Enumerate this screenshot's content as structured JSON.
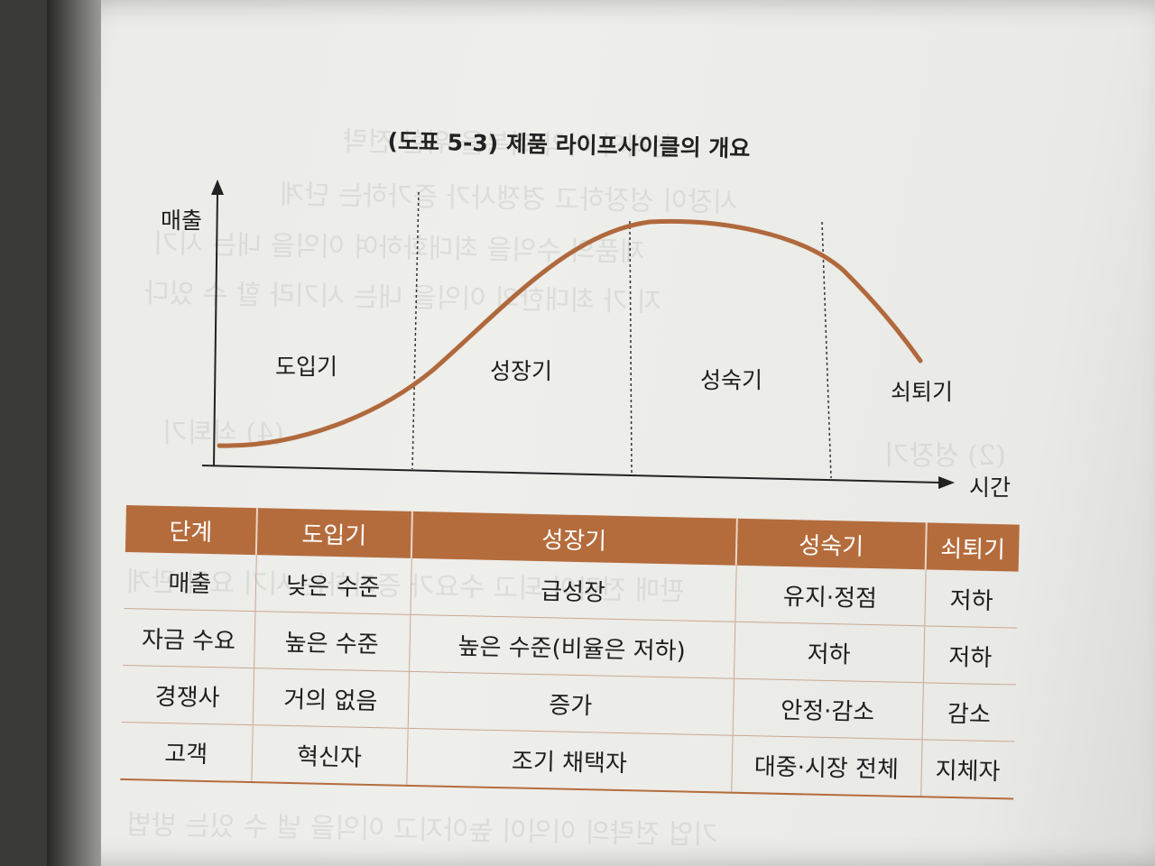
{
  "figure": {
    "title": "(도표 5-3) 제품 라이프사이클의 개요",
    "y_axis_label": "매출",
    "x_axis_label": "시간",
    "stages": [
      "도입기",
      "성장기",
      "성숙기",
      "쇠퇴기"
    ]
  },
  "table": {
    "headers": [
      "단계",
      "도입기",
      "성장기",
      "성숙기",
      "쇠퇴기"
    ],
    "rows": [
      [
        "매출",
        "낮은 수준",
        "급성장",
        "유지·정점",
        "저하"
      ],
      [
        "자금 수요",
        "높은 수준",
        "높은 수준(비율은 저하)",
        "저하",
        "저하"
      ],
      [
        "경쟁사",
        "거의 없음",
        "증가",
        "안정·감소",
        "감소"
      ],
      [
        "고객",
        "혁신자",
        "조기 채택자",
        "대중·시장 전체",
        "지체자"
      ]
    ]
  },
  "colors": {
    "accent": "#b56c3c",
    "curve": "#b0693c",
    "text": "#1d1d1d"
  }
}
